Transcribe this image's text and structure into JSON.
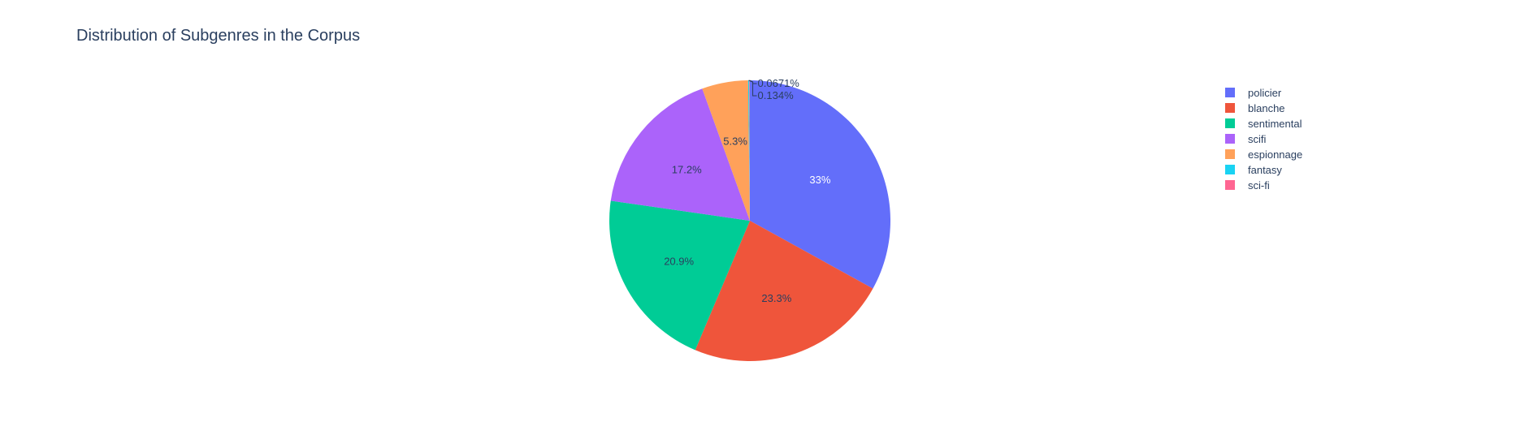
{
  "chart_data": {
    "type": "pie",
    "title": "Distribution of Subgenres in the Corpus",
    "labels": [
      "policier",
      "blanche",
      "sentimental",
      "scifi",
      "espionnage",
      "fantasy",
      "sci-fi"
    ],
    "values": [
      33.0,
      23.3,
      20.9,
      17.2,
      5.3,
      0.134,
      0.0671
    ],
    "value_labels": [
      "33%",
      "23.3%",
      "20.9%",
      "17.2%",
      "5.3%",
      "0.134%",
      "0.0671%"
    ],
    "colors": [
      "#636efa",
      "#EF553B",
      "#00cc96",
      "#ab63fa",
      "#FFA15A",
      "#19d3f3",
      "#FF6692"
    ],
    "legend_position": "top-right",
    "direction": "clockwise",
    "start_angle": "top"
  }
}
